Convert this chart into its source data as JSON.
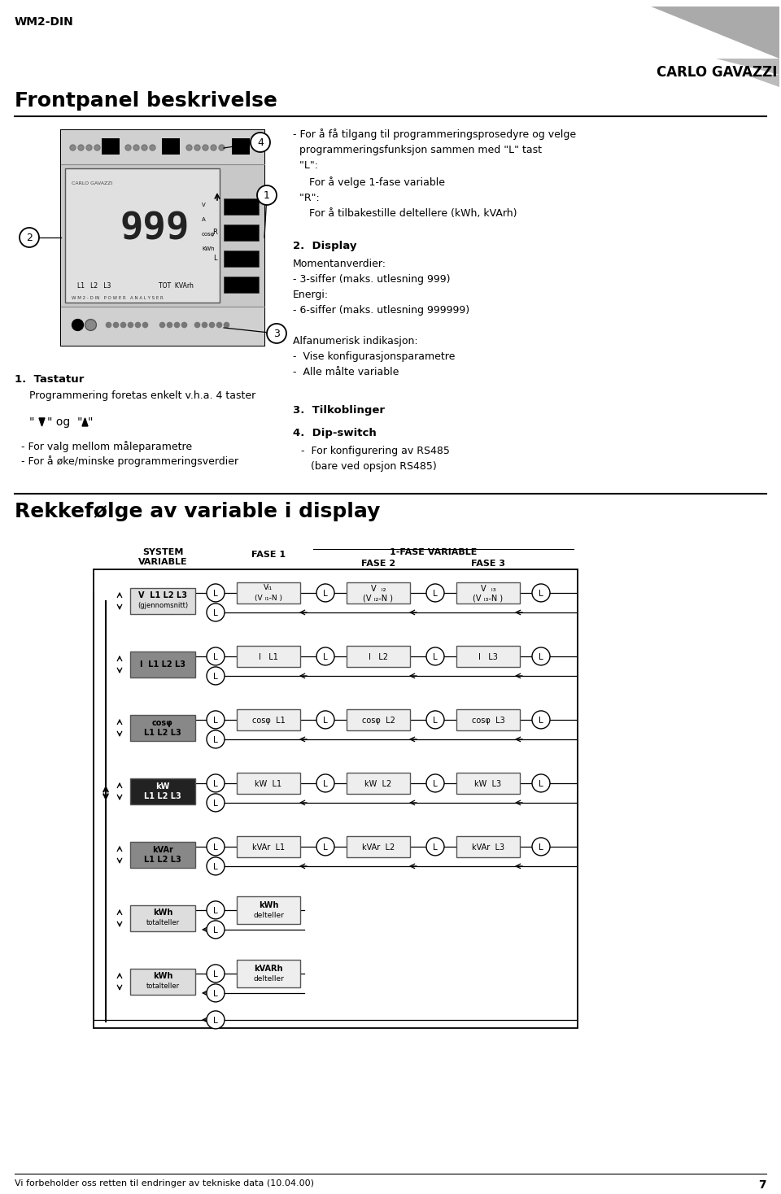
{
  "page_title": "WM2-DIN",
  "brand": "CARLO GAVAZZI",
  "section1_title": "Frontpanel beskrivelse",
  "section2_title": "Rekkefølge av variable i display",
  "right_bullet": "- For å få tilgang til programmeringsprosedyre og velge\n  programmeringsfunksjon sammen med \"L\" tast\n  \"L\":\n     For å velge 1-fase variable\n  \"R\":\n     For å tilbakestille deltellere (kWh, kVArh)",
  "item2_title": "2.  Display",
  "item2_body": "Momentanverdier:\n- 3-siffer (maks. utlesning 999)\nEnergi:\n- 6-siffer (maks. utlesning 999999)\n\nAlfanumerisk indikasjon:\n-  Vise konfigurasjonsparametre\n-  Alle målte variable",
  "item3_title": "3.  Tilkoblinger",
  "item4_title": "4.  Dip-switch",
  "item4_body": "-  For konfigurering av RS485\n   (bare ved opsjon RS485)",
  "item1_title": "1.  Tastatur",
  "item1_body": "Programmering foretas enkelt v.h.a. 4 taster",
  "item1_arrows": "\" ▲\" og  \"▼\"",
  "item1_bullets": "- For valg mellom måleparametre\n- For å øke/minske programmeringsverdier",
  "footer": "Vi forbeholder oss retten til endringer av tekniske data (10.04.00)",
  "page_num": "7",
  "bg_color": "#ffffff",
  "black": "#000000",
  "dark_gray": "#444444",
  "med_gray": "#999999",
  "light_gray": "#dddddd",
  "panel_gray": "#cccccc"
}
